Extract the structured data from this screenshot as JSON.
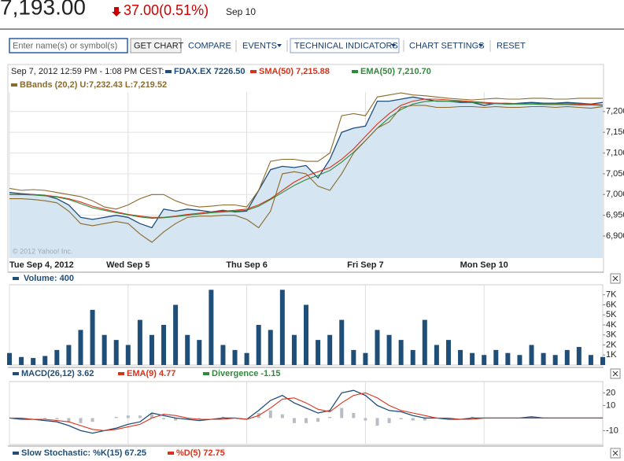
{
  "header": {
    "price": "7,193.00",
    "change": "37.00(0.51%)",
    "date": "Sep 10"
  },
  "toolbar": {
    "search_placeholder": "Enter name(s) or symbol(s)",
    "get_chart": "GET CHART",
    "compare": "COMPARE",
    "events": "EVENTS",
    "technical_indicators": "TECHNICAL INDICATORS",
    "chart_settings": "CHART SETTINGS",
    "reset": "RESET"
  },
  "chart_data": [
    {
      "type": "line",
      "subtitle": "Sep 7, 2012 12:59 PM - 1:08 PM CEST:",
      "annotation": "© 2012 Yahoo! Inc.",
      "categories": [
        "Tue Sep 4, 2012",
        null,
        null,
        null,
        null,
        null,
        null,
        null,
        null,
        null,
        "Wed Sep 5",
        null,
        null,
        null,
        null,
        null,
        null,
        null,
        null,
        null,
        "Thu Sep 6",
        null,
        null,
        null,
        null,
        null,
        null,
        null,
        null,
        null,
        "Fri Sep 7",
        null,
        null,
        null,
        null,
        null,
        null,
        null,
        null,
        null,
        "Mon Sep 10",
        null,
        null,
        null,
        null,
        null,
        null,
        null,
        null,
        null,
        null
      ],
      "ylim": [
        6847,
        7247
      ],
      "yticks": [
        {
          "value": 6900,
          "label": "6,900"
        },
        {
          "value": 6950,
          "label": "6,950"
        },
        {
          "value": 7000,
          "label": "7,000"
        },
        {
          "value": 7050,
          "label": "7,050"
        },
        {
          "value": 7100,
          "label": "7,100"
        },
        {
          "value": 7150,
          "label": "7,150"
        },
        {
          "value": 7200,
          "label": "7,200"
        }
      ],
      "grid": true,
      "series": [
        {
          "name": "FDAX.EX 7226.50",
          "color": "#1f4e79",
          "fill": "#d5e5f1",
          "values": [
            7005,
            7002,
            7000,
            6998,
            6990,
            6975,
            6945,
            6940,
            6945,
            6950,
            6945,
            6930,
            6920,
            6965,
            6960,
            6965,
            6962,
            6958,
            6962,
            6958,
            6960,
            7010,
            7060,
            7068,
            7065,
            7070,
            7040,
            7085,
            7150,
            7160,
            7165,
            7225,
            7225,
            7230,
            7235,
            7230,
            7225,
            7225,
            7222,
            7222,
            7215,
            7220,
            7218,
            7220,
            7222,
            7220,
            7220,
            7222,
            7220,
            7218,
            7222
          ]
        },
        {
          "name": "SMA(50) 7,215.88",
          "color": "#d9321a",
          "values": [
            7000,
            7000,
            7000,
            6998,
            6995,
            6990,
            6982,
            6972,
            6965,
            6958,
            6952,
            6948,
            6945,
            6945,
            6948,
            6952,
            6955,
            6958,
            6960,
            6962,
            6965,
            6975,
            6990,
            7010,
            7030,
            7045,
            7055,
            7065,
            7085,
            7110,
            7140,
            7170,
            7195,
            7215,
            7225,
            7230,
            7230,
            7228,
            7226,
            7224,
            7222,
            7220,
            7220,
            7219,
            7219,
            7219,
            7219,
            7219,
            7218,
            7218,
            7216
          ]
        },
        {
          "name": "EMA(50) 7,210.70",
          "color": "#2e8b3a",
          "values": [
            7000,
            7000,
            6999,
            6997,
            6994,
            6988,
            6978,
            6968,
            6962,
            6956,
            6951,
            6946,
            6943,
            6944,
            6947,
            6950,
            6953,
            6956,
            6958,
            6960,
            6962,
            6972,
            6988,
            7005,
            7022,
            7036,
            7046,
            7058,
            7078,
            7102,
            7130,
            7160,
            7185,
            7205,
            7218,
            7224,
            7226,
            7225,
            7224,
            7222,
            7220,
            7219,
            7218,
            7218,
            7218,
            7217,
            7217,
            7217,
            7216,
            7216,
            7215
          ]
        },
        {
          "name": "BBands (20,2) U:7,232.43 L:7,219.52",
          "color": "#8b6a2e",
          "upper": [
            7015,
            7010,
            7012,
            7010,
            7005,
            7000,
            6995,
            6985,
            6970,
            6965,
            6975,
            6990,
            7000,
            7000,
            6985,
            6975,
            6970,
            6972,
            6975,
            6975,
            6970,
            7010,
            7080,
            7085,
            7085,
            7080,
            7080,
            7100,
            7190,
            7195,
            7190,
            7235,
            7240,
            7245,
            7240,
            7238,
            7235,
            7232,
            7230,
            7228,
            7230,
            7232,
            7230,
            7230,
            7232,
            7232,
            7230,
            7230,
            7232,
            7232,
            7232
          ],
          "lower": [
            6990,
            6990,
            6988,
            6985,
            6980,
            6960,
            6930,
            6925,
            6930,
            6935,
            6930,
            6905,
            6885,
            6910,
            6930,
            6945,
            6948,
            6948,
            6950,
            6950,
            6940,
            6920,
            6960,
            7050,
            7055,
            7050,
            7020,
            7010,
            7050,
            7100,
            7130,
            7160,
            7175,
            7210,
            7215,
            7215,
            7210,
            7210,
            7212,
            7212,
            7210,
            7212,
            7210,
            7210,
            7212,
            7212,
            7210,
            7212,
            7210,
            7208,
            7212
          ]
        }
      ]
    },
    {
      "type": "bar",
      "legend": "Volume: 400",
      "color": "#1f4e79",
      "ylim": [
        0,
        8000
      ],
      "yticks": [
        {
          "value": 1000,
          "label": "1K"
        },
        {
          "value": 2000,
          "label": "2K"
        },
        {
          "value": 3000,
          "label": "3K"
        },
        {
          "value": 4000,
          "label": "4K"
        },
        {
          "value": 5000,
          "label": "5K"
        },
        {
          "value": 6000,
          "label": "6K"
        },
        {
          "value": 7000,
          "label": "7K"
        }
      ],
      "values": [
        1200,
        800,
        700,
        900,
        1500,
        2000,
        3500,
        5500,
        3000,
        2500,
        2000,
        4500,
        3000,
        4000,
        6000,
        3000,
        2500,
        7500,
        2000,
        1500,
        1200,
        4000,
        3500,
        7500,
        3000,
        6000,
        2500,
        3000,
        4500,
        1500,
        1200,
        3500,
        3000,
        2500,
        1500,
        4500,
        2000,
        2500,
        1500,
        1200,
        1000,
        1500,
        1200,
        1000,
        2000,
        1200,
        1000,
        1500,
        1800,
        1000,
        800
      ]
    },
    {
      "type": "line",
      "ylim": [
        -21,
        29
      ],
      "yticks": [
        20,
        10,
        -10
      ],
      "series": [
        {
          "name": "MACD(26,12) 3.62",
          "color": "#1f4e79",
          "values": [
            0,
            -1,
            -1,
            -2,
            -3,
            -6,
            -10,
            -12,
            -10,
            -8,
            -5,
            -3,
            4,
            2,
            0,
            -1,
            -2,
            -1,
            0,
            0,
            -1,
            6,
            14,
            18,
            12,
            8,
            4,
            6,
            20,
            22,
            18,
            10,
            6,
            5,
            2,
            0,
            0,
            -1,
            -1,
            0,
            0,
            0,
            0,
            0,
            1,
            0,
            0,
            0,
            0,
            0,
            0
          ]
        },
        {
          "name": "EMA(9) 4.77",
          "color": "#d9321a",
          "values": [
            0,
            0,
            -1,
            -1,
            -2,
            -3,
            -6,
            -9,
            -10,
            -9,
            -7,
            -5,
            0,
            3,
            2,
            0,
            -1,
            -1,
            -1,
            0,
            -1,
            2,
            8,
            15,
            16,
            12,
            7,
            5,
            12,
            18,
            20,
            16,
            10,
            6,
            4,
            2,
            0,
            0,
            -1,
            -1,
            0,
            0,
            0,
            0,
            0,
            0,
            0,
            0,
            0,
            0,
            0
          ]
        },
        {
          "name": "Divergence -1.15",
          "color": "#2e8b3a",
          "bar_color": "#b8bcc4",
          "values": [
            0,
            -1,
            0,
            -1,
            -1,
            -3,
            -4,
            -3,
            0,
            1,
            2,
            2,
            4,
            -1,
            -2,
            -1,
            -1,
            0,
            1,
            0,
            0,
            4,
            6,
            3,
            -4,
            -4,
            -3,
            1,
            8,
            4,
            -2,
            -6,
            -4,
            -1,
            -2,
            -2,
            0,
            -1,
            0,
            1,
            0,
            0,
            0,
            0,
            1,
            0,
            0,
            0,
            0,
            0,
            0
          ]
        }
      ]
    },
    {
      "type": "line",
      "series": [
        {
          "name": "Slow Stochastic: %K(15) 67.25",
          "color": "#1f4e79"
        },
        {
          "name": "%D(5) 72.75",
          "color": "#d9321a"
        }
      ]
    }
  ]
}
